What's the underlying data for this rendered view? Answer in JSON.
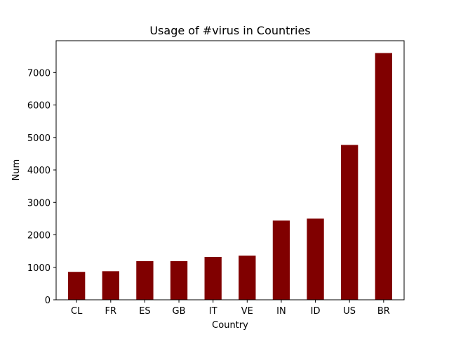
{
  "chart_data": {
    "type": "bar",
    "title": "Usage of #virus in Countries",
    "xlabel": "Country",
    "ylabel": "Num",
    "categories": [
      "CL",
      "FR",
      "ES",
      "GB",
      "IT",
      "VE",
      "IN",
      "ID",
      "US",
      "BR"
    ],
    "values": [
      860,
      880,
      1190,
      1190,
      1320,
      1360,
      2440,
      2500,
      4770,
      7600
    ],
    "ylim": [
      0,
      7980
    ],
    "yticks": [
      0,
      1000,
      2000,
      3000,
      4000,
      5000,
      6000,
      7000
    ],
    "ytick_labels": [
      "0",
      "1000",
      "2000",
      "3000",
      "4000",
      "5000",
      "6000",
      "7000"
    ],
    "bar_color": "#800000",
    "grid": false,
    "legend": "none"
  }
}
